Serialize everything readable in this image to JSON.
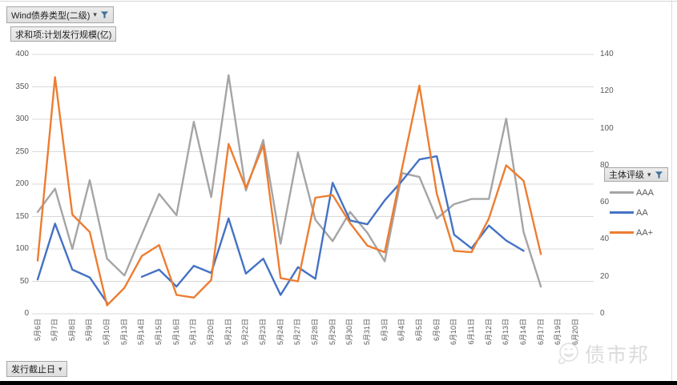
{
  "app": {
    "series_filter_button": {
      "label": "Wind债券类型(二级)"
    },
    "value_field_button": {
      "label": "求和项:计划发行规模(亿)"
    },
    "legend_filter_button": {
      "label": "主体评级"
    },
    "axis_filter_button": {
      "label": "发行截止日"
    },
    "watermark": {
      "text": "债市邦",
      "icon": "smiley-face-icon"
    }
  },
  "chart_data": {
    "type": "line",
    "title": "",
    "xlabel": "",
    "ylabel": "",
    "grid": "horizontal",
    "legend_position": "right",
    "left_axis": {
      "min": 0,
      "max": 400,
      "step": 50
    },
    "right_axis": {
      "min": 0,
      "max": 140,
      "step": 20
    },
    "categories": [
      "5月6日",
      "5月7日",
      "5月8日",
      "5月9日",
      "5月10日",
      "5月13日",
      "5月14日",
      "5月15日",
      "5月16日",
      "5月17日",
      "5月20日",
      "5月21日",
      "5月22日",
      "5月23日",
      "5月24日",
      "5月27日",
      "5月28日",
      "5月29日",
      "5月30日",
      "5月31日",
      "6月3日",
      "6月4日",
      "6月5日",
      "6月6日",
      "6月10日",
      "6月11日",
      "6月12日",
      "6月13日",
      "6月14日",
      "6月17日",
      "6月19日",
      "6月20日"
    ],
    "series": [
      {
        "name": "AAA",
        "color": "#A5A5A5",
        "values": [
          157,
          193,
          100,
          206,
          85,
          59,
          122,
          185,
          152,
          296,
          180,
          368,
          190,
          268,
          108,
          249,
          145,
          112,
          157,
          125,
          81,
          217,
          211,
          147,
          169,
          177,
          177,
          301,
          126,
          42,
          null,
          null
        ]
      },
      {
        "name": "AA",
        "color": "#4472C4",
        "values": [
          53,
          139,
          68,
          56,
          17,
          null,
          57,
          68,
          42,
          74,
          63,
          147,
          62,
          85,
          29,
          72,
          54,
          202,
          144,
          138,
          175,
          205,
          238,
          243,
          122,
          101,
          136,
          113,
          97,
          null,
          null,
          null
        ]
      },
      {
        "name": "AA+",
        "color": "#ED7D31",
        "values": [
          82,
          365,
          153,
          126,
          13,
          40,
          89,
          106,
          29,
          25,
          52,
          262,
          194,
          260,
          55,
          50,
          179,
          183,
          140,
          105,
          95,
          225,
          352,
          185,
          97,
          95,
          147,
          229,
          205,
          92,
          null,
          null
        ]
      }
    ]
  }
}
